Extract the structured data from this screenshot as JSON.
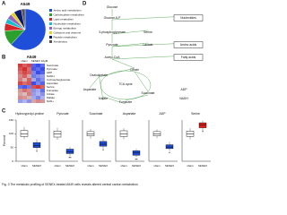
{
  "panels": {
    "a": {
      "label": "A",
      "title": "A549",
      "legend": [
        "Amino acid metabolism",
        "Carbohydrate metabolism",
        "Lipid metabolism",
        "Nucleotide metabolism",
        "Energy metabolism",
        "Cofactors and vitamins",
        "Peptide metabolism",
        "Xenobiotics"
      ],
      "values": [
        62,
        12,
        6,
        4,
        4,
        3,
        6,
        3
      ],
      "colors": [
        "#1f4fd8",
        "#2ca02c",
        "#d62728",
        "#17becf",
        "#9467bd",
        "#e6d21c",
        "#0a1a6e",
        "#555555"
      ]
    },
    "b": {
      "label": "B",
      "title": "A549",
      "columns": [
        "sham",
        "SENEX 10µM"
      ],
      "rows": [
        "Succinate",
        "Pyruvate",
        "ADP",
        "NADH",
        "3-phosphoglycerate",
        "Aspartate",
        "Serine",
        "Fumarate",
        "Citrate",
        "Malate",
        "NAD+"
      ],
      "matrix": [
        [
          1.2,
          0.9,
          1.1,
          -1.0,
          -1.2,
          -0.9
        ],
        [
          1.0,
          1.3,
          0.8,
          -1.1,
          -0.9,
          -1.2
        ],
        [
          0.8,
          1.1,
          0.9,
          -0.7,
          -1.2,
          -1.0
        ],
        [
          0.6,
          0.9,
          0.4,
          -0.8,
          -0.6,
          -0.5
        ],
        [
          0.7,
          0.3,
          0.9,
          -0.4,
          -0.9,
          -0.6
        ],
        [
          1.1,
          0.8,
          1.0,
          -1.2,
          -0.7,
          -1.0
        ],
        [
          -0.9,
          -1.1,
          -0.8,
          1.0,
          1.2,
          0.9
        ],
        [
          0.5,
          0.8,
          0.6,
          -0.6,
          -0.4,
          -0.9
        ],
        [
          0.4,
          0.2,
          0.7,
          -0.5,
          -0.3,
          -0.6
        ],
        [
          0.6,
          0.5,
          0.3,
          -0.4,
          -0.7,
          -0.3
        ],
        [
          -0.5,
          -0.3,
          -0.6,
          0.4,
          0.6,
          0.5
        ]
      ]
    },
    "c": {
      "label": "C",
      "ylabel": "Percent",
      "ylim": [
        0,
        150
      ],
      "yticks": [
        0,
        50,
        100,
        150
      ],
      "plots": [
        {
          "title": "Hydroxyprolyl-proline",
          "groups": [
            "sham",
            "SENEX"
          ],
          "colors": [
            "#ffffff",
            "#1f4fd8"
          ],
          "stars": "*",
          "boxes": [
            {
              "min": 80,
              "q1": 90,
              "median": 100,
              "q3": 112,
              "max": 125
            },
            {
              "min": 40,
              "q1": 50,
              "median": 58,
              "q3": 68,
              "max": 80
            }
          ]
        },
        {
          "title": "Pyruvate",
          "groups": [
            "sham",
            "SENEX"
          ],
          "colors": [
            "#ffffff",
            "#1f4fd8"
          ],
          "stars": "**",
          "boxes": [
            {
              "min": 78,
              "q1": 88,
              "median": 100,
              "q3": 110,
              "max": 122
            },
            {
              "min": 20,
              "q1": 28,
              "median": 35,
              "q3": 44,
              "max": 52
            }
          ]
        },
        {
          "title": "Succinate",
          "groups": [
            "sham",
            "SENEX"
          ],
          "colors": [
            "#ffffff",
            "#1f4fd8"
          ],
          "stars": "*",
          "boxes": [
            {
              "min": 82,
              "q1": 92,
              "median": 100,
              "q3": 108,
              "max": 118
            },
            {
              "min": 45,
              "q1": 55,
              "median": 62,
              "q3": 72,
              "max": 82
            }
          ]
        },
        {
          "title": "Aspartate",
          "groups": [
            "sham",
            "SENEX"
          ],
          "colors": [
            "#ffffff",
            "#1f4fd8"
          ],
          "stars": "**",
          "boxes": [
            {
              "min": 80,
              "q1": 90,
              "median": 100,
              "q3": 111,
              "max": 120
            },
            {
              "min": 15,
              "q1": 22,
              "median": 30,
              "q3": 38,
              "max": 46
            }
          ]
        },
        {
          "title": "ADP",
          "groups": [
            "sham",
            "SENEX"
          ],
          "colors": [
            "#ffffff",
            "#1f4fd8"
          ],
          "stars": "*",
          "boxes": [
            {
              "min": 84,
              "q1": 92,
              "median": 100,
              "q3": 108,
              "max": 116
            },
            {
              "min": 38,
              "q1": 46,
              "median": 52,
              "q3": 60,
              "max": 70
            }
          ]
        },
        {
          "title": "Serine",
          "groups": [
            "sham",
            "SENEX"
          ],
          "colors": [
            "#ffffff",
            "#e0201e"
          ],
          "stars": "*",
          "boxes": [
            {
              "min": 80,
              "q1": 90,
              "median": 100,
              "q3": 110,
              "max": 120
            },
            {
              "min": 110,
              "q1": 122,
              "median": 132,
              "q3": 140,
              "max": 148
            }
          ]
        }
      ]
    },
    "d": {
      "label": "D",
      "nodes": [
        "Glucose",
        "Glucose-6-P",
        "Nucleotides",
        "3-phosphoglycerate",
        "Serine",
        "Pyruvate",
        "Lactate",
        "Amino acids",
        "Acetyl-CoA",
        "Fatty acids",
        "Citrate",
        "TCA cycle",
        "Oxaloacetate",
        "Aspartate",
        "Malate",
        "Fumarate",
        "Succinate",
        "ADP",
        "NADH"
      ]
    }
  },
  "caption": "Fig. 3 The metabolic profiling of SENEX-treated A549 cells reveals altered central carbon metabolism"
}
